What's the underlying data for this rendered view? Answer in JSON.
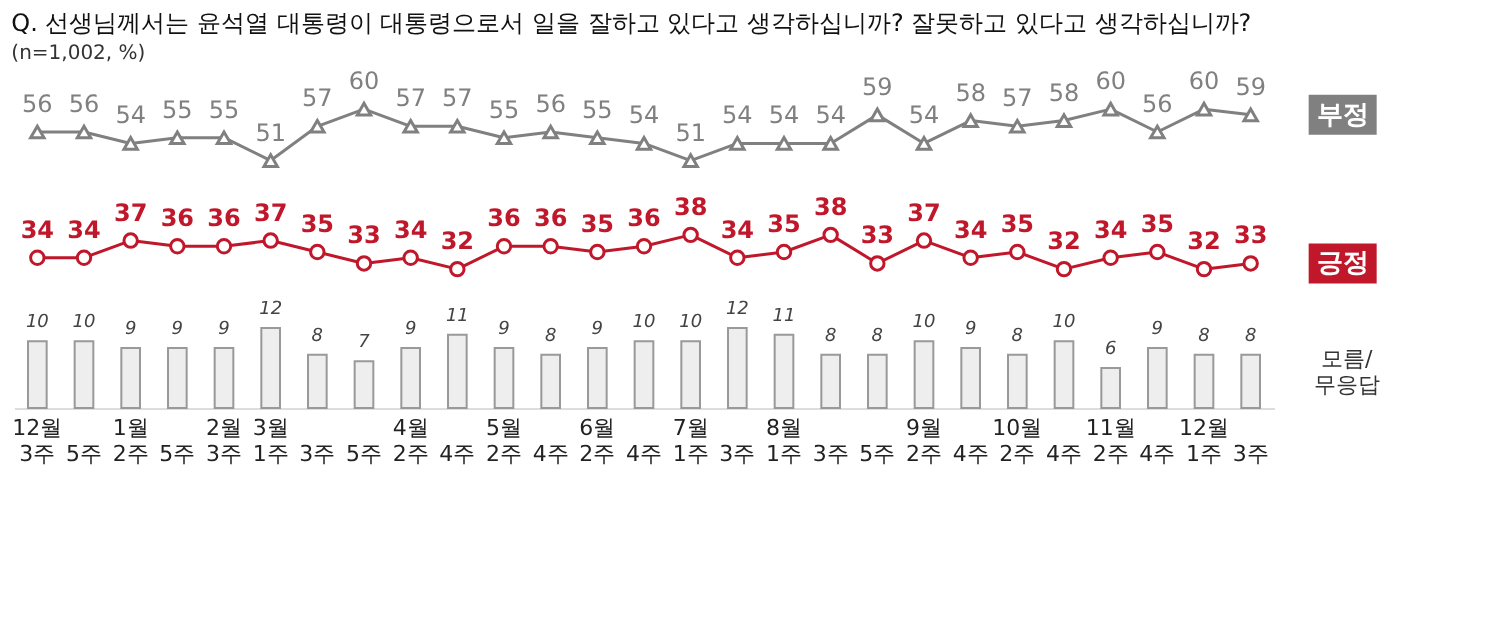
{
  "chart_data": [
    {
      "type": "line",
      "title": "Q. 선생님께서는 윤석열 대통령이 대통령으로서 일을 잘하고 있다고 생각하십니까? 잘못하고 있다고 생각하십니까?",
      "annotations": [
        "(n=1,002, %)"
      ],
      "categories": [
        null,
        null,
        null,
        null,
        null,
        null,
        null,
        null,
        null,
        null,
        null,
        null,
        null,
        null,
        null,
        null,
        null,
        null,
        null,
        null,
        null,
        null,
        null,
        null,
        null,
        null,
        null
      ],
      "series": [
        {
          "name": "부정",
          "type": "line",
          "marker": "triangle",
          "color": "#808080",
          "values": [
            56,
            56,
            54,
            55,
            55,
            51,
            57,
            60,
            57,
            57,
            55,
            56,
            55,
            54,
            51,
            54,
            54,
            54,
            59,
            54,
            58,
            57,
            58,
            60,
            56,
            60,
            59
          ]
        },
        {
          "name": "긍정",
          "type": "line",
          "marker": "circle",
          "color": "#c0172b",
          "values": [
            34,
            34,
            37,
            36,
            36,
            37,
            35,
            33,
            34,
            32,
            36,
            36,
            35,
            36,
            38,
            34,
            35,
            38,
            33,
            37,
            34,
            35,
            32,
            34,
            35,
            32,
            33
          ]
        }
      ],
      "data_labels": true,
      "tick_labels": false,
      "legend": "right"
    },
    {
      "type": "bar",
      "categories": [
        "12월\n3주",
        "5주",
        "1월\n2주",
        "5주",
        "2월\n3주",
        "3월\n1주",
        "3주",
        "5주",
        "4월\n2주",
        "4주",
        "5월\n2주",
        "4주",
        "6월\n2주",
        "4주",
        "7월\n1주",
        "3주",
        "8월\n1주",
        "3주",
        "5주",
        "9월\n2주",
        "4주",
        "10월\n2주",
        "4주",
        "11월\n2주",
        "4주",
        "12월\n1주",
        "3주"
      ],
      "series": [
        {
          "name": "모름/\n무응답",
          "color": "#eeeeee",
          "values": [
            10,
            10,
            9,
            9,
            9,
            12,
            8,
            7,
            9,
            11,
            9,
            8,
            9,
            10,
            10,
            12,
            11,
            8,
            8,
            10,
            9,
            8,
            10,
            6,
            9,
            8,
            8
          ]
        }
      ],
      "data_labels": true,
      "tick_labels": "x",
      "legend": "right"
    }
  ]
}
